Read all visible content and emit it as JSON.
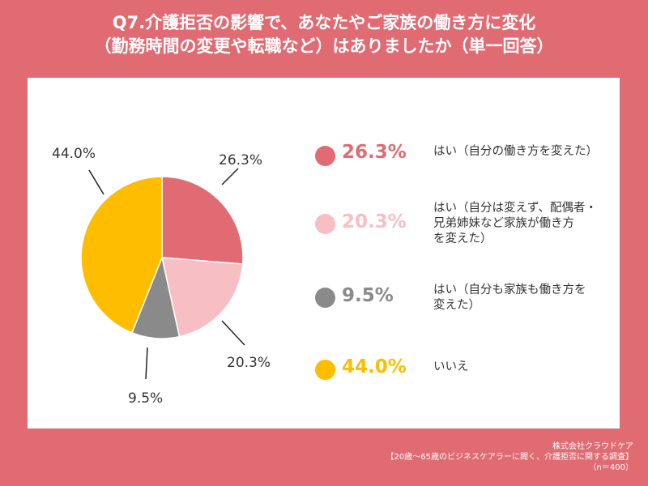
{
  "title": {
    "line1": "Q7.介護拒否の影響で、あなたやご家族の働き方に変化",
    "line2": "（勤務時間の変更や転職など）はありましたか（単一回答）"
  },
  "chart_data": {
    "type": "pie",
    "title": "Q7.介護拒否の影響で、あなたやご家族の働き方に変化（勤務時間の変更や転職など）はありましたか（単一回答）",
    "slices": [
      {
        "value": 26.3,
        "label": "26.3%",
        "name": "はい（自分の働き方を変えた）",
        "color": "#e06b72"
      },
      {
        "value": 20.3,
        "label": "20.3%",
        "name": "はい（自分は変えず、配偶者・\n兄弟姉妹など家族が働き方\nを変えた）",
        "color": "#f7bfc4"
      },
      {
        "value": 9.5,
        "label": "9.5%",
        "name": "はい（自分も家族も働き方を\n変えた）",
        "color": "#8a8a8a"
      },
      {
        "value": 44.0,
        "label": "44.0%",
        "name": "いいえ",
        "color": "#ffbd00"
      }
    ],
    "start_angle_deg": 0,
    "direction": "clockwise",
    "legend_position": "right"
  },
  "footer": {
    "company": "株式会社クラウドケア",
    "survey": "【20歳～65歳のビジネスケアラーに聞く、介護拒否に関する調査】",
    "n": "（n＝400）"
  }
}
